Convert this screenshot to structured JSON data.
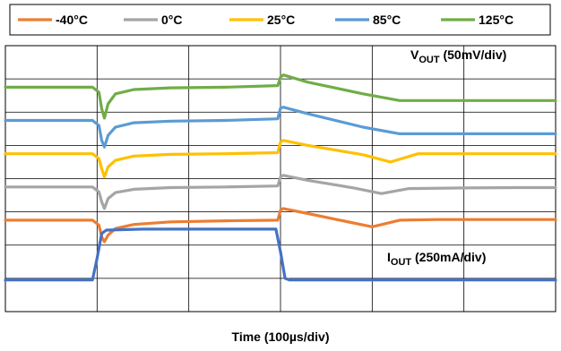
{
  "chart_data": {
    "type": "line",
    "title": "",
    "xlabel": "Time (100µs/div)",
    "ylabel": "",
    "grid": true,
    "x_divisions": 6,
    "y_divisions": 8,
    "legend": {
      "placement": "top",
      "entries": [
        {
          "label": "-40°C",
          "color": "#ED7D31"
        },
        {
          "label": "0°C",
          "color": "#A5A5A5"
        },
        {
          "label": "25°C",
          "color": "#FFC000"
        },
        {
          "label": "85°C",
          "color": "#5B9BD5"
        },
        {
          "label": "125°C",
          "color": "#70AD47"
        }
      ]
    },
    "annotations": {
      "vout": {
        "main": "V",
        "sub": "OUT",
        "rest": " (50mV/div)"
      },
      "iout": {
        "main": "I",
        "sub": "OUT",
        "rest": " (250mA/div)"
      }
    },
    "series": [
      {
        "name": "125°C",
        "color": "#70AD47",
        "x": [
          0,
          0.95,
          1.02,
          1.05,
          1.08,
          1.12,
          1.2,
          1.4,
          1.8,
          2.4,
          2.97,
          3.0,
          3.03,
          3.3,
          3.9,
          4.3,
          4.6,
          5.0,
          5.6,
          6.0
        ],
        "y": [
          6.75,
          6.75,
          6.6,
          6.1,
          5.82,
          6.25,
          6.55,
          6.68,
          6.73,
          6.75,
          6.8,
          7.05,
          7.12,
          6.9,
          6.55,
          6.35,
          6.35,
          6.35,
          6.35,
          6.35
        ]
      },
      {
        "name": "85°C",
        "color": "#5B9BD5",
        "x": [
          0,
          0.95,
          1.02,
          1.05,
          1.08,
          1.12,
          1.2,
          1.4,
          1.8,
          2.4,
          2.97,
          3.0,
          3.03,
          3.3,
          3.9,
          4.3,
          4.6,
          5.0,
          5.6,
          6.0
        ],
        "y": [
          5.75,
          5.75,
          5.6,
          5.15,
          4.95,
          5.3,
          5.55,
          5.68,
          5.73,
          5.75,
          5.8,
          6.12,
          6.15,
          5.95,
          5.55,
          5.35,
          5.35,
          5.35,
          5.35,
          5.35
        ]
      },
      {
        "name": "25°C",
        "color": "#FFC000",
        "x": [
          0,
          0.95,
          1.02,
          1.05,
          1.08,
          1.12,
          1.2,
          1.4,
          1.8,
          2.4,
          2.97,
          3.0,
          3.03,
          3.3,
          3.9,
          4.2,
          4.5,
          5.0,
          5.6,
          6.0
        ],
        "y": [
          4.75,
          4.75,
          4.6,
          4.3,
          4.05,
          4.35,
          4.55,
          4.68,
          4.73,
          4.75,
          4.78,
          5.1,
          5.15,
          5.0,
          4.72,
          4.5,
          4.75,
          4.75,
          4.75,
          4.75
        ]
      },
      {
        "name": "0°C",
        "color": "#A5A5A5",
        "x": [
          0,
          0.95,
          1.02,
          1.05,
          1.08,
          1.12,
          1.2,
          1.4,
          1.8,
          2.4,
          2.97,
          3.0,
          3.03,
          3.3,
          3.8,
          4.1,
          4.4,
          5.0,
          5.6,
          6.0
        ],
        "y": [
          3.75,
          3.75,
          3.6,
          3.3,
          3.1,
          3.4,
          3.58,
          3.68,
          3.73,
          3.75,
          3.78,
          4.05,
          4.1,
          3.95,
          3.72,
          3.55,
          3.7,
          3.72,
          3.73,
          3.73
        ]
      },
      {
        "name": "-40°C",
        "color": "#ED7D31",
        "x": [
          0,
          0.95,
          1.02,
          1.05,
          1.08,
          1.12,
          1.2,
          1.4,
          1.8,
          2.4,
          2.97,
          3.0,
          3.03,
          3.3,
          3.7,
          4.0,
          4.3,
          4.7,
          5.5,
          6.0
        ],
        "y": [
          2.75,
          2.75,
          2.6,
          2.25,
          2.1,
          2.3,
          2.5,
          2.62,
          2.7,
          2.73,
          2.75,
          3.05,
          3.1,
          2.95,
          2.72,
          2.55,
          2.75,
          2.77,
          2.77,
          2.77
        ]
      },
      {
        "name": "IOUT",
        "color": "#4472C4",
        "x": [
          0,
          0.95,
          1.0,
          1.05,
          1.1,
          1.5,
          2.0,
          2.5,
          2.95,
          3.0,
          3.05,
          3.1,
          3.5,
          4.5,
          6.0
        ],
        "y": [
          0.95,
          0.95,
          1.6,
          2.35,
          2.45,
          2.48,
          2.48,
          2.48,
          2.48,
          1.8,
          1.0,
          0.95,
          0.95,
          0.95,
          0.95
        ]
      }
    ]
  }
}
